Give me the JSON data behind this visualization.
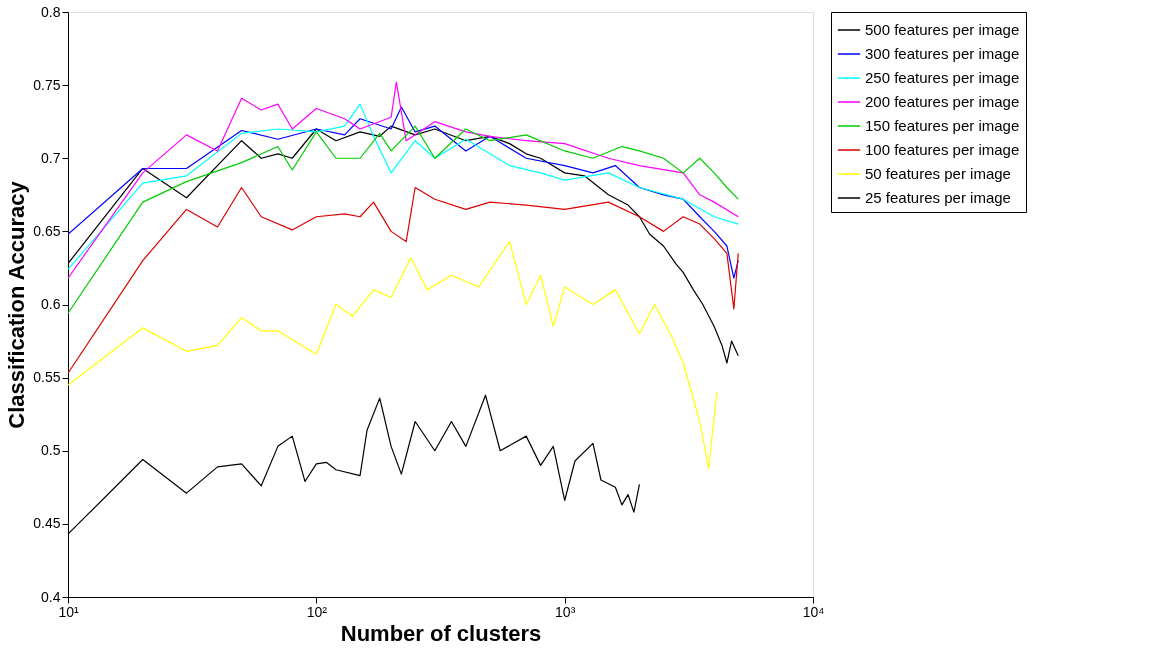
{
  "chart_data": {
    "type": "line",
    "xlabel": "Number of clusters",
    "ylabel": "Classification Accuracy",
    "log": "x",
    "grid": false,
    "legend": "top right",
    "marker": "none",
    "line_style": "solid",
    "xlim": [
      10,
      10000
    ],
    "xticks": [
      {
        "value": 10,
        "label": "10¹"
      },
      {
        "value": 100,
        "label": "10²"
      },
      {
        "value": 1000,
        "label": "10³"
      },
      {
        "value": 10000,
        "label": "10⁴"
      }
    ],
    "ylim": [
      0.4,
      0.8
    ],
    "yticks": [
      0.4,
      0.45,
      0.5,
      0.55,
      0.6,
      0.65,
      0.7,
      0.75,
      0.8
    ],
    "series": [
      {
        "name": "500 features per image",
        "color": "#000000",
        "x": [
          10,
          20,
          30,
          50,
          60,
          70,
          80,
          100,
          120,
          150,
          180,
          200,
          250,
          300,
          400,
          500,
          600,
          700,
          800,
          1000,
          1200,
          1500,
          1800,
          2000,
          2200,
          2500,
          2800,
          3000,
          3300,
          3600,
          4000,
          4300,
          4500,
          4700,
          5000
        ],
        "values": [
          0.628,
          0.693,
          0.673,
          0.712,
          0.7,
          0.703,
          0.7,
          0.72,
          0.712,
          0.718,
          0.715,
          0.722,
          0.716,
          0.72,
          0.712,
          0.715,
          0.71,
          0.703,
          0.7,
          0.69,
          0.688,
          0.675,
          0.668,
          0.66,
          0.648,
          0.64,
          0.628,
          0.622,
          0.61,
          0.6,
          0.585,
          0.572,
          0.56,
          0.575,
          0.565
        ]
      },
      {
        "name": "300 features per image",
        "color": "#0000ff",
        "x": [
          10,
          20,
          30,
          50,
          70,
          100,
          130,
          150,
          200,
          220,
          250,
          300,
          400,
          500,
          700,
          1000,
          1300,
          1600,
          2000,
          2500,
          3000,
          3500,
          4000,
          4500,
          4800,
          5000
        ],
        "values": [
          0.648,
          0.693,
          0.693,
          0.719,
          0.713,
          0.72,
          0.716,
          0.727,
          0.72,
          0.735,
          0.718,
          0.722,
          0.705,
          0.715,
          0.7,
          0.695,
          0.69,
          0.695,
          0.68,
          0.675,
          0.672,
          0.66,
          0.65,
          0.64,
          0.618,
          0.63
        ]
      },
      {
        "name": "250 features per image",
        "color": "#00ffff",
        "x": [
          10,
          20,
          30,
          50,
          70,
          100,
          130,
          150,
          170,
          200,
          250,
          300,
          400,
          600,
          800,
          1000,
          1500,
          2000,
          3000,
          4000,
          5000
        ],
        "values": [
          0.624,
          0.683,
          0.688,
          0.717,
          0.72,
          0.718,
          0.722,
          0.737,
          0.715,
          0.69,
          0.712,
          0.7,
          0.713,
          0.695,
          0.69,
          0.685,
          0.69,
          0.68,
          0.672,
          0.66,
          0.655
        ]
      },
      {
        "name": "200 features per image",
        "color": "#ff00ff",
        "x": [
          10,
          20,
          30,
          40,
          50,
          60,
          70,
          80,
          100,
          130,
          150,
          200,
          210,
          230,
          300,
          400,
          500,
          700,
          1000,
          1500,
          2000,
          3000,
          3500,
          4000,
          5000
        ],
        "values": [
          0.618,
          0.69,
          0.716,
          0.705,
          0.741,
          0.733,
          0.737,
          0.72,
          0.734,
          0.727,
          0.72,
          0.728,
          0.752,
          0.712,
          0.725,
          0.718,
          0.715,
          0.712,
          0.71,
          0.7,
          0.695,
          0.69,
          0.675,
          0.67,
          0.66
        ]
      },
      {
        "name": "150 features per image",
        "color": "#00cc00",
        "x": [
          10,
          20,
          30,
          50,
          70,
          80,
          100,
          120,
          150,
          180,
          200,
          250,
          300,
          400,
          500,
          700,
          1000,
          1300,
          1700,
          2000,
          2500,
          3000,
          3500,
          4000,
          4500,
          5000
        ],
        "values": [
          0.594,
          0.67,
          0.684,
          0.697,
          0.708,
          0.692,
          0.718,
          0.7,
          0.7,
          0.717,
          0.705,
          0.722,
          0.7,
          0.72,
          0.712,
          0.716,
          0.705,
          0.7,
          0.708,
          0.705,
          0.7,
          0.69,
          0.7,
          0.69,
          0.68,
          0.672
        ]
      },
      {
        "name": "100 features per image",
        "color": "#dd0000",
        "x": [
          10,
          20,
          30,
          40,
          50,
          60,
          80,
          100,
          130,
          150,
          170,
          200,
          230,
          250,
          300,
          400,
          500,
          700,
          1000,
          1500,
          2000,
          2500,
          3000,
          3500,
          4000,
          4500,
          4800,
          5000
        ],
        "values": [
          0.553,
          0.63,
          0.665,
          0.653,
          0.68,
          0.66,
          0.651,
          0.66,
          0.662,
          0.66,
          0.67,
          0.65,
          0.643,
          0.68,
          0.672,
          0.665,
          0.67,
          0.668,
          0.665,
          0.67,
          0.66,
          0.65,
          0.66,
          0.655,
          0.645,
          0.635,
          0.597,
          0.635
        ]
      },
      {
        "name": "50 features per image",
        "color": "#ffff00",
        "x": [
          10,
          20,
          30,
          40,
          50,
          60,
          70,
          100,
          120,
          140,
          170,
          200,
          240,
          280,
          350,
          450,
          600,
          700,
          800,
          900,
          1000,
          1300,
          1600,
          2000,
          2300,
          2700,
          3000,
          3500,
          3800,
          4100
        ],
        "values": [
          0.545,
          0.584,
          0.568,
          0.572,
          0.591,
          0.582,
          0.582,
          0.566,
          0.6,
          0.592,
          0.61,
          0.605,
          0.632,
          0.61,
          0.62,
          0.612,
          0.643,
          0.6,
          0.62,
          0.585,
          0.612,
          0.6,
          0.61,
          0.58,
          0.6,
          0.578,
          0.56,
          0.52,
          0.488,
          0.54
        ]
      },
      {
        "name": "25 features per image",
        "color": "#000000",
        "x": [
          10,
          20,
          30,
          40,
          50,
          60,
          70,
          80,
          90,
          100,
          110,
          120,
          150,
          160,
          180,
          200,
          220,
          250,
          300,
          350,
          400,
          480,
          550,
          700,
          800,
          900,
          1000,
          1100,
          1300,
          1400,
          1600,
          1700,
          1800,
          1900,
          2000
        ],
        "values": [
          0.443,
          0.494,
          0.471,
          0.489,
          0.491,
          0.476,
          0.503,
          0.51,
          0.479,
          0.491,
          0.492,
          0.487,
          0.483,
          0.514,
          0.536,
          0.503,
          0.484,
          0.52,
          0.5,
          0.52,
          0.503,
          0.538,
          0.5,
          0.51,
          0.49,
          0.503,
          0.466,
          0.493,
          0.505,
          0.48,
          0.475,
          0.463,
          0.47,
          0.458,
          0.477
        ]
      }
    ]
  }
}
